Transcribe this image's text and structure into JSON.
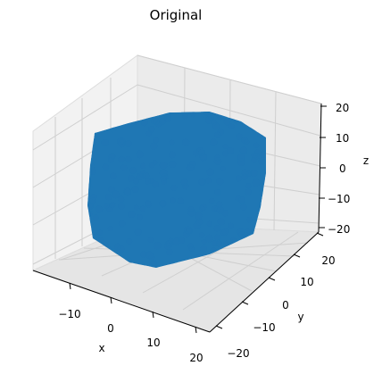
{
  "chart_data": {
    "type": "scatter",
    "title": "Original",
    "xlabel": "x",
    "ylabel": "y",
    "zlabel": "z",
    "xlim": [
      -20,
      20
    ],
    "ylim": [
      -20,
      20
    ],
    "zlim": [
      -20,
      20
    ],
    "xticks": [
      "−10",
      "0",
      "10",
      "20"
    ],
    "yticks": [
      "−20",
      "−10",
      "0",
      "10",
      "20"
    ],
    "zticks": [
      "−20",
      "−10",
      "0",
      "10",
      "20"
    ],
    "grid": true,
    "series": [
      {
        "color": "#1f77b4",
        "alpha": 0.7,
        "shape": "dense point cloud filling a cube",
        "bounds": {
          "x": [
            -15,
            15
          ],
          "y": [
            -15,
            15
          ],
          "z": [
            -15,
            15
          ]
        }
      }
    ]
  }
}
